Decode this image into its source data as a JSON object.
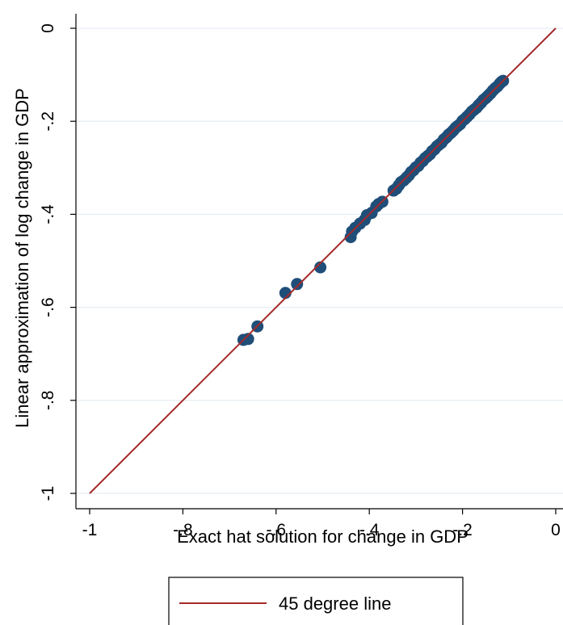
{
  "chart_data": {
    "type": "scatter",
    "xlabel": "Exact hat solution for change in GDP",
    "ylabel": "Linear approximation of log change in GDP",
    "xlim": [
      -1,
      0
    ],
    "ylim": [
      -1,
      0
    ],
    "x_ticks": [
      -1,
      -0.8,
      -0.6,
      -0.4,
      -0.2,
      0
    ],
    "y_ticks": [
      -1,
      -0.8,
      -0.6,
      -0.4,
      -0.2,
      0
    ],
    "x_tick_labels": [
      "-1",
      "-.8",
      "-.6",
      "-.4",
      "-.2",
      "0"
    ],
    "y_tick_labels": [
      "-1",
      "-.8",
      "-.6",
      "-.4",
      "-.2",
      "0"
    ],
    "grid": "horizontal",
    "legend_position": "bottom",
    "colors": {
      "points": "#1f4e79",
      "line": "#a52a2a",
      "grid": "#e6eef2"
    },
    "series": [
      {
        "type": "scatter",
        "points": [
          [
            -0.67,
            -0.67
          ],
          [
            -0.66,
            -0.668
          ],
          [
            -0.64,
            -0.641
          ],
          [
            -0.58,
            -0.569
          ],
          [
            -0.555,
            -0.55
          ],
          [
            -0.505,
            -0.514
          ],
          [
            -0.44,
            -0.449
          ],
          [
            -0.437,
            -0.437
          ],
          [
            -0.43,
            -0.429
          ],
          [
            -0.42,
            -0.42
          ],
          [
            -0.41,
            -0.412
          ],
          [
            -0.405,
            -0.402
          ],
          [
            -0.395,
            -0.397
          ],
          [
            -0.385,
            -0.383
          ],
          [
            -0.38,
            -0.378
          ],
          [
            -0.372,
            -0.373
          ],
          [
            -0.348,
            -0.349
          ],
          [
            -0.342,
            -0.345
          ],
          [
            -0.337,
            -0.338
          ],
          [
            -0.332,
            -0.331
          ],
          [
            -0.326,
            -0.327
          ],
          [
            -0.32,
            -0.321
          ],
          [
            -0.315,
            -0.316
          ],
          [
            -0.31,
            -0.309
          ],
          [
            -0.305,
            -0.305
          ],
          [
            -0.3,
            -0.299
          ],
          [
            -0.295,
            -0.296
          ],
          [
            -0.29,
            -0.289
          ],
          [
            -0.285,
            -0.285
          ],
          [
            -0.28,
            -0.279
          ],
          [
            -0.275,
            -0.275
          ],
          [
            -0.27,
            -0.271
          ],
          [
            -0.265,
            -0.264
          ],
          [
            -0.26,
            -0.26
          ],
          [
            -0.255,
            -0.254
          ],
          [
            -0.25,
            -0.25
          ],
          [
            -0.245,
            -0.246
          ],
          [
            -0.24,
            -0.239
          ],
          [
            -0.235,
            -0.235
          ],
          [
            -0.23,
            -0.229
          ],
          [
            -0.225,
            -0.225
          ],
          [
            -0.22,
            -0.22
          ],
          [
            -0.215,
            -0.214
          ],
          [
            -0.21,
            -0.21
          ],
          [
            -0.205,
            -0.206
          ],
          [
            -0.2,
            -0.199
          ],
          [
            -0.195,
            -0.195
          ],
          [
            -0.19,
            -0.19
          ],
          [
            -0.185,
            -0.185
          ],
          [
            -0.18,
            -0.179
          ],
          [
            -0.175,
            -0.175
          ],
          [
            -0.17,
            -0.171
          ],
          [
            -0.165,
            -0.165
          ],
          [
            -0.16,
            -0.16
          ],
          [
            -0.155,
            -0.154
          ],
          [
            -0.15,
            -0.15
          ],
          [
            -0.145,
            -0.145
          ],
          [
            -0.14,
            -0.14
          ],
          [
            -0.135,
            -0.134
          ],
          [
            -0.13,
            -0.129
          ],
          [
            -0.125,
            -0.125
          ],
          [
            -0.12,
            -0.119
          ],
          [
            -0.116,
            -0.115
          ],
          [
            -0.113,
            -0.113
          ]
        ]
      },
      {
        "name": "45 degree line",
        "type": "line",
        "x": [
          -1,
          0
        ],
        "y": [
          -1,
          0
        ]
      }
    ]
  }
}
